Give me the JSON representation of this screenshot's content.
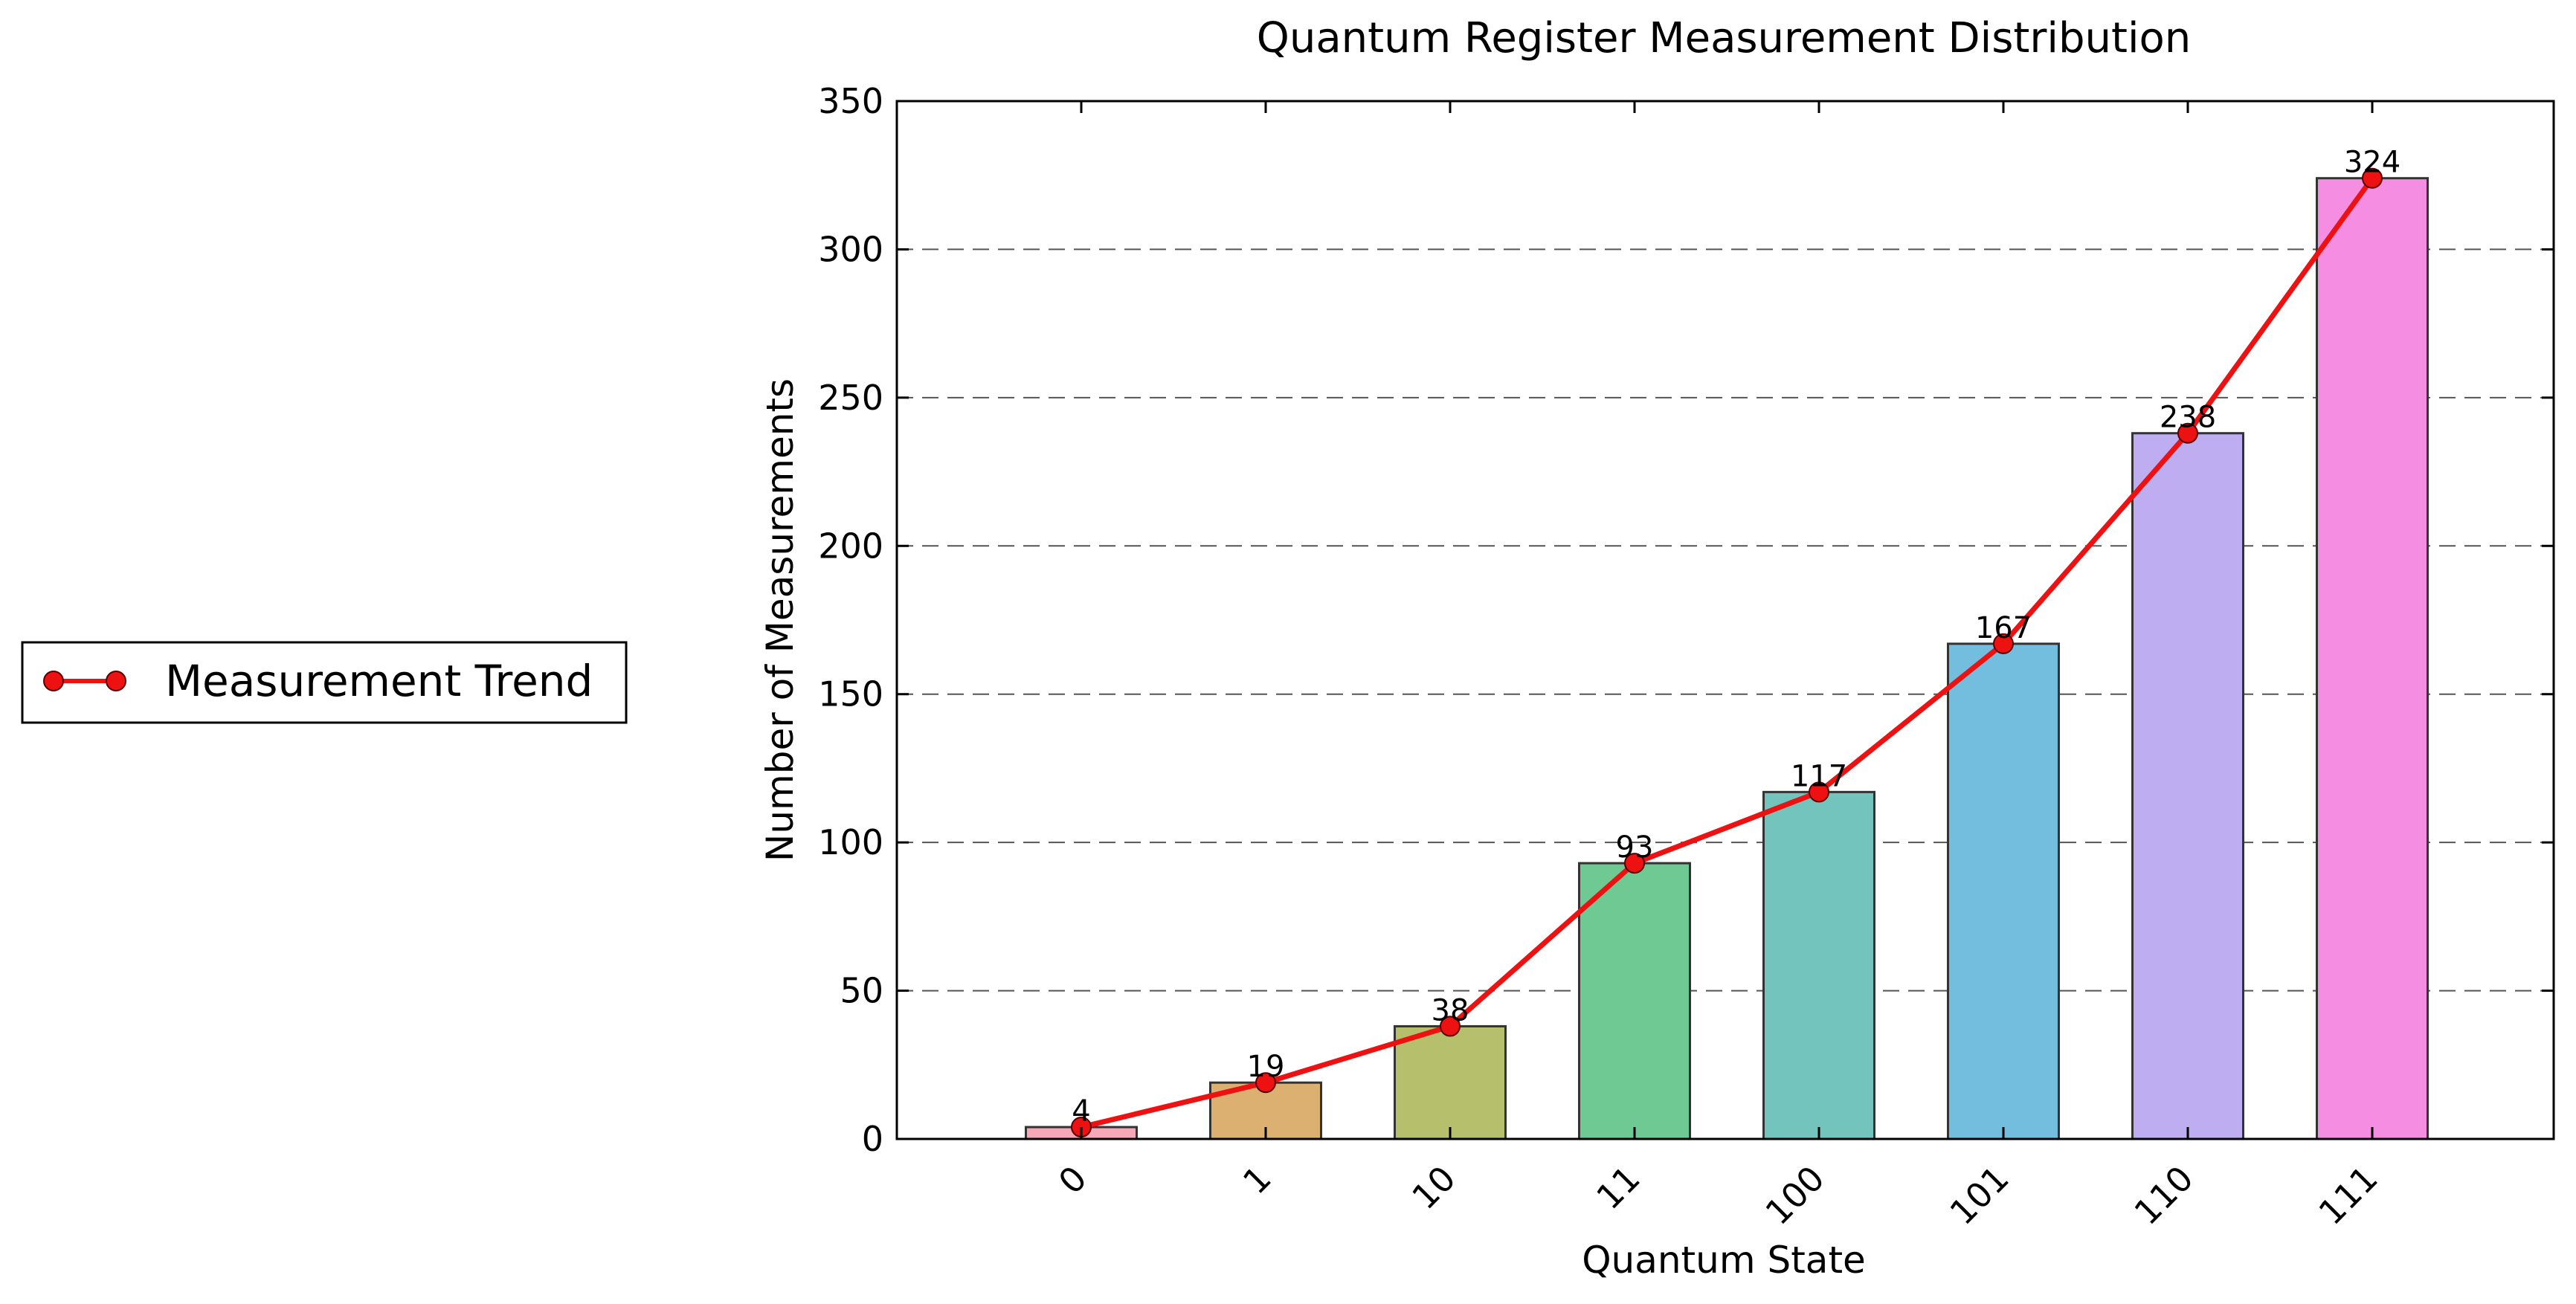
{
  "chart_data": {
    "type": "bar",
    "title": "Quantum Register Measurement Distribution",
    "xlabel": "Quantum State",
    "ylabel": "Number of Measurements",
    "categories": [
      "0",
      "1",
      "10",
      "11",
      "100",
      "101",
      "110",
      "111"
    ],
    "values": [
      4,
      19,
      38,
      93,
      117,
      167,
      238,
      324
    ],
    "bar_colors": [
      "#f7a8b8",
      "#dcb070",
      "#b6bf6c",
      "#6ec993",
      "#72c4bd",
      "#73bede",
      "#bfadf2",
      "#f58ee3"
    ],
    "bar_edge_color": "#333333",
    "ylim": [
      0,
      350
    ],
    "yticks": [
      0,
      50,
      100,
      150,
      200,
      250,
      300,
      350
    ],
    "grid": "y-dashed",
    "line_series": {
      "name": "Measurement Trend",
      "values": [
        4,
        19,
        38,
        93,
        117,
        167,
        238,
        324
      ],
      "color": "#ee1111",
      "marker": "circle"
    },
    "legend_position": "left-center"
  }
}
